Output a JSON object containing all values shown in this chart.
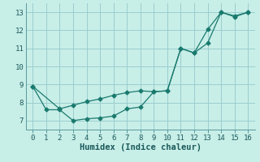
{
  "line1_x": [
    0,
    1,
    2,
    3,
    4,
    5,
    6,
    7,
    8,
    9,
    10,
    11,
    12,
    13,
    14,
    15,
    16
  ],
  "line1_y": [
    8.9,
    7.6,
    7.6,
    7.0,
    7.1,
    7.15,
    7.25,
    7.65,
    7.75,
    8.6,
    8.65,
    11.0,
    10.75,
    11.3,
    13.0,
    12.8,
    13.0
  ],
  "line2_x": [
    0,
    2,
    3,
    4,
    5,
    6,
    7,
    8,
    9,
    10,
    11,
    12,
    13,
    14,
    15,
    16
  ],
  "line2_y": [
    8.9,
    7.65,
    7.85,
    8.05,
    8.2,
    8.4,
    8.55,
    8.65,
    8.6,
    8.65,
    11.0,
    10.75,
    12.05,
    13.0,
    12.75,
    13.0
  ],
  "line_color": "#1a7a6e",
  "bg_color": "#c8eee8",
  "grid_color": "#9acece",
  "xlabel": "Humidex (Indice chaleur)",
  "xlim": [
    -0.5,
    16.5
  ],
  "ylim": [
    6.5,
    13.5
  ],
  "yticks": [
    7,
    8,
    9,
    10,
    11,
    12,
    13
  ],
  "xticks": [
    0,
    1,
    2,
    3,
    4,
    5,
    6,
    7,
    8,
    9,
    10,
    11,
    12,
    13,
    14,
    15,
    16
  ]
}
